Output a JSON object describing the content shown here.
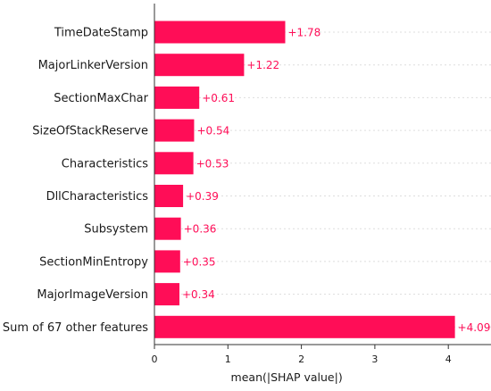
{
  "chart_data": {
    "type": "bar",
    "orientation": "horizontal",
    "categories": [
      "TimeDateStamp",
      "MajorLinkerVersion",
      "SectionMaxChar",
      "SizeOfStackReserve",
      "Characteristics",
      "DllCharacteristics",
      "Subsystem",
      "SectionMinEntropy",
      "MajorImageVersion",
      "Sum of 67 other features"
    ],
    "values": [
      1.78,
      1.22,
      0.61,
      0.54,
      0.53,
      0.39,
      0.36,
      0.35,
      0.34,
      4.09
    ],
    "value_labels": [
      "+1.78",
      "+1.22",
      "+0.61",
      "+0.54",
      "+0.53",
      "+0.39",
      "+0.36",
      "+0.35",
      "+0.34",
      "+4.09"
    ],
    "xlabel": "mean(|SHAP value|)",
    "xlim": [
      0,
      4.5
    ],
    "xticks": [
      0,
      1,
      2,
      3,
      4
    ],
    "xtick_labels": [
      "0",
      "1",
      "2",
      "3",
      "4"
    ],
    "grid": "horizontal dashed row guides",
    "colors": {
      "bar": "#ff0d57",
      "value_label": "#ff0d57",
      "axis": "#333333",
      "grid": "#dddddd"
    }
  }
}
